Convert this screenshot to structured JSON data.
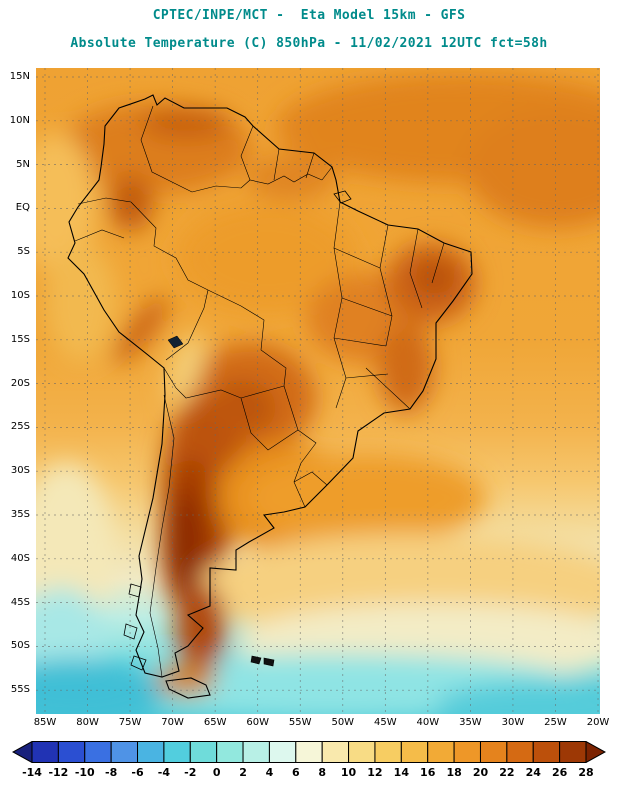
{
  "header": {
    "title_line1": "CPTEC/INPE/MCT -  Eta Model 15km - GFS",
    "title_line2": "Absolute Temperature (C) 850hPa - 11/02/2021 12UTC fct=58h",
    "title_color": "#008b8b"
  },
  "map": {
    "lat_labels": [
      "15N",
      "10N",
      "5N",
      "EQ",
      "5S",
      "10S",
      "15S",
      "20S",
      "25S",
      "30S",
      "35S",
      "40S",
      "45S",
      "50S",
      "55S"
    ],
    "lon_labels": [
      "85W",
      "80W",
      "75W",
      "70W",
      "65W",
      "60W",
      "55W",
      "50W",
      "45W",
      "40W",
      "35W",
      "30W",
      "25W",
      "20W"
    ]
  },
  "colorbar": {
    "tick_labels": [
      "-14",
      "-12",
      "-10",
      "-8",
      "-6",
      "-4",
      "-2",
      "0",
      "2",
      "4",
      "6",
      "8",
      "10",
      "12",
      "14",
      "16",
      "18",
      "20",
      "22",
      "24",
      "26",
      "28"
    ],
    "segment_colors": [
      "#18207c",
      "#2133b4",
      "#2b4fd2",
      "#3a70e2",
      "#4f93e6",
      "#4ab4e2",
      "#52cede",
      "#6fdcda",
      "#92e8de",
      "#b8f0e6",
      "#ddf8ee",
      "#f6f6d8",
      "#f9e9ad",
      "#f8dc85",
      "#f7cd62",
      "#f5bc49",
      "#f2aa36",
      "#ee9728",
      "#e5831d",
      "#d56a13",
      "#bc500b",
      "#9d3805",
      "#7c2301"
    ]
  },
  "chart_data": {
    "type": "heatmap",
    "title": "Absolute Temperature (C) 850hPa",
    "source": "CPTEC/INPE/MCT",
    "model": "Eta Model 15km - GFS",
    "valid": "11/02/2021 12UTC fct=58h",
    "units": "C",
    "lon_range": [
      "85W",
      "20W"
    ],
    "lat_range": [
      "15N",
      "55S"
    ],
    "colorbar_values": [
      -14,
      -12,
      -10,
      -8,
      -6,
      -4,
      -2,
      0,
      2,
      4,
      6,
      8,
      10,
      12,
      14,
      16,
      18,
      20,
      22,
      24,
      26,
      28
    ]
  }
}
